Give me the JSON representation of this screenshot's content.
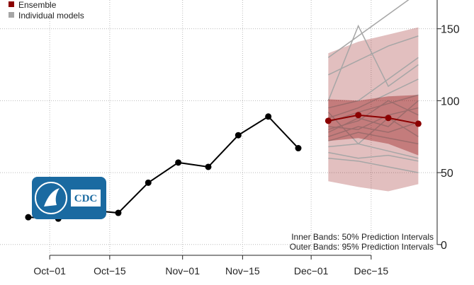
{
  "chart_data": {
    "type": "line",
    "x": [
      -5,
      2,
      9,
      16,
      23,
      30,
      37,
      44,
      51,
      58
    ],
    "values": [
      19,
      18,
      24,
      22,
      43,
      57,
      54,
      76,
      89,
      67
    ],
    "observed_color": "#000000",
    "ensemble": {
      "name": "Ensemble",
      "color": "#8b0000",
      "x": [
        65,
        72,
        79,
        86
      ],
      "values": [
        86,
        90,
        88,
        84
      ],
      "inner_low": [
        72,
        74,
        70,
        62
      ],
      "inner_high": [
        101,
        100,
        103,
        104
      ],
      "outer_low": [
        44,
        40,
        37,
        42
      ],
      "outer_high": [
        133,
        141,
        146,
        151
      ]
    },
    "models": {
      "name": "Individual models",
      "color": "#a6a6a6",
      "lines": [
        [
          130,
          145,
          160,
          175
        ],
        [
          118,
          128,
          138,
          145
        ],
        [
          100,
          152,
          110,
          125
        ],
        [
          95,
          100,
          115,
          130
        ],
        [
          88,
          95,
          105,
          115
        ],
        [
          85,
          92,
          98,
          104
        ],
        [
          82,
          80,
          90,
          95
        ],
        [
          78,
          88,
          82,
          100
        ],
        [
          75,
          82,
          78,
          85
        ],
        [
          72,
          78,
          74,
          70
        ],
        [
          68,
          70,
          65,
          60
        ],
        [
          64,
          60,
          62,
          58
        ],
        [
          60,
          58,
          54,
          50
        ],
        [
          92,
          70,
          88,
          75
        ],
        [
          80,
          86,
          100,
          90
        ]
      ]
    },
    "xlim": [
      -11.6,
      90.4
    ],
    "xticks": [
      {
        "value": 0,
        "label": "Oct−01"
      },
      {
        "value": 14,
        "label": "Oct−15"
      },
      {
        "value": 31,
        "label": "Nov−01"
      },
      {
        "value": 45,
        "label": "Nov−15"
      },
      {
        "value": 61,
        "label": "Dec−01"
      },
      {
        "value": 75,
        "label": "Dec−15"
      }
    ],
    "ylim": [
      -6,
      170
    ],
    "yticks": [
      0,
      50,
      100,
      150
    ],
    "grid": true,
    "legend": "top-left",
    "annotations": [
      "Inner Bands: 50% Prediction Intervals",
      "Outer Bands: 95% Prediction Intervals"
    ],
    "logo_text": "CDC"
  }
}
